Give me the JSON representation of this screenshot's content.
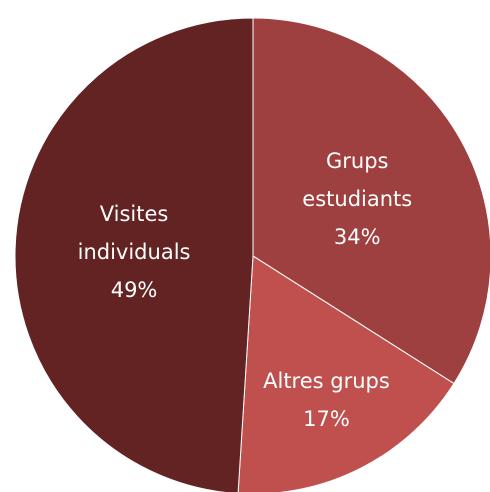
{
  "chart_data": {
    "type": "pie",
    "categories": [
      "Grups estudiants",
      "Altres grups",
      "Visites individuals"
    ],
    "values": [
      34,
      17,
      49
    ],
    "value_labels": [
      "34%",
      "17%",
      "49%"
    ],
    "colors": [
      "#9e403f",
      "#c0504d",
      "#632323"
    ],
    "start_angle": 0,
    "direction": "clockwise"
  }
}
